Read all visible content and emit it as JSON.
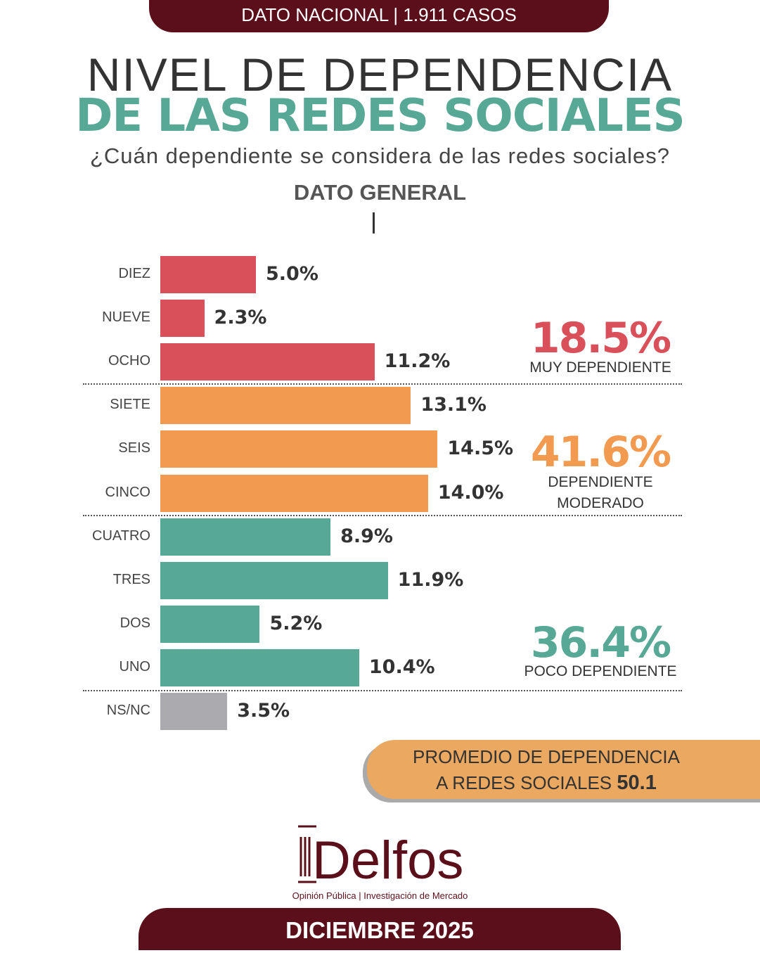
{
  "header": {
    "banner": "DATO NACIONAL | 1.911 CASOS",
    "title_line1": "NIVEL DE DEPENDENCIA",
    "title_line2": "DE LAS REDES SOCIALES",
    "question": "¿Cuán dependiente se considera de las redes sociales?",
    "section": "DATO GENERAL"
  },
  "chart_data": {
    "type": "bar",
    "orientation": "horizontal",
    "title": "NIVEL DE DEPENDENCIA DE LAS REDES SOCIALES",
    "categories": [
      "DIEZ",
      "NUEVE",
      "OCHO",
      "SIETE",
      "SEIS",
      "CINCO",
      "CUATRO",
      "TRES",
      "DOS",
      "UNO",
      "NS/NC"
    ],
    "values": [
      5.0,
      2.3,
      11.2,
      13.1,
      14.5,
      14.0,
      8.9,
      11.9,
      5.2,
      10.4,
      3.5
    ],
    "labels": [
      "5.0%",
      "2.3%",
      "11.2%",
      "13.1%",
      "14.5%",
      "14.0%",
      "8.9%",
      "11.9%",
      "5.2%",
      "10.4%",
      "3.5%"
    ],
    "groups_index": [
      0,
      0,
      0,
      1,
      1,
      1,
      2,
      2,
      2,
      2,
      3
    ],
    "groups": [
      {
        "pct": "18.5%",
        "label": "MUY DEPENDIENTE",
        "color": "#d9505a"
      },
      {
        "pct": "41.6%",
        "label": "DEPENDIENTE",
        "label2": "MODERADO",
        "color": "#f29b50"
      },
      {
        "pct": "36.4%",
        "label": "POCO DEPENDIENTE",
        "color": "#58a896"
      },
      {
        "color": "#abaaae"
      }
    ]
  },
  "promedio": {
    "line1": "PROMEDIO DE DEPENDENCIA",
    "line2": "A REDES SOCIALES",
    "value": "50.1"
  },
  "footer": {
    "brand": "Delfos",
    "tagline": "Opinión Pública | Investigación de Mercado",
    "date": "DICIEMBRE 2025"
  }
}
